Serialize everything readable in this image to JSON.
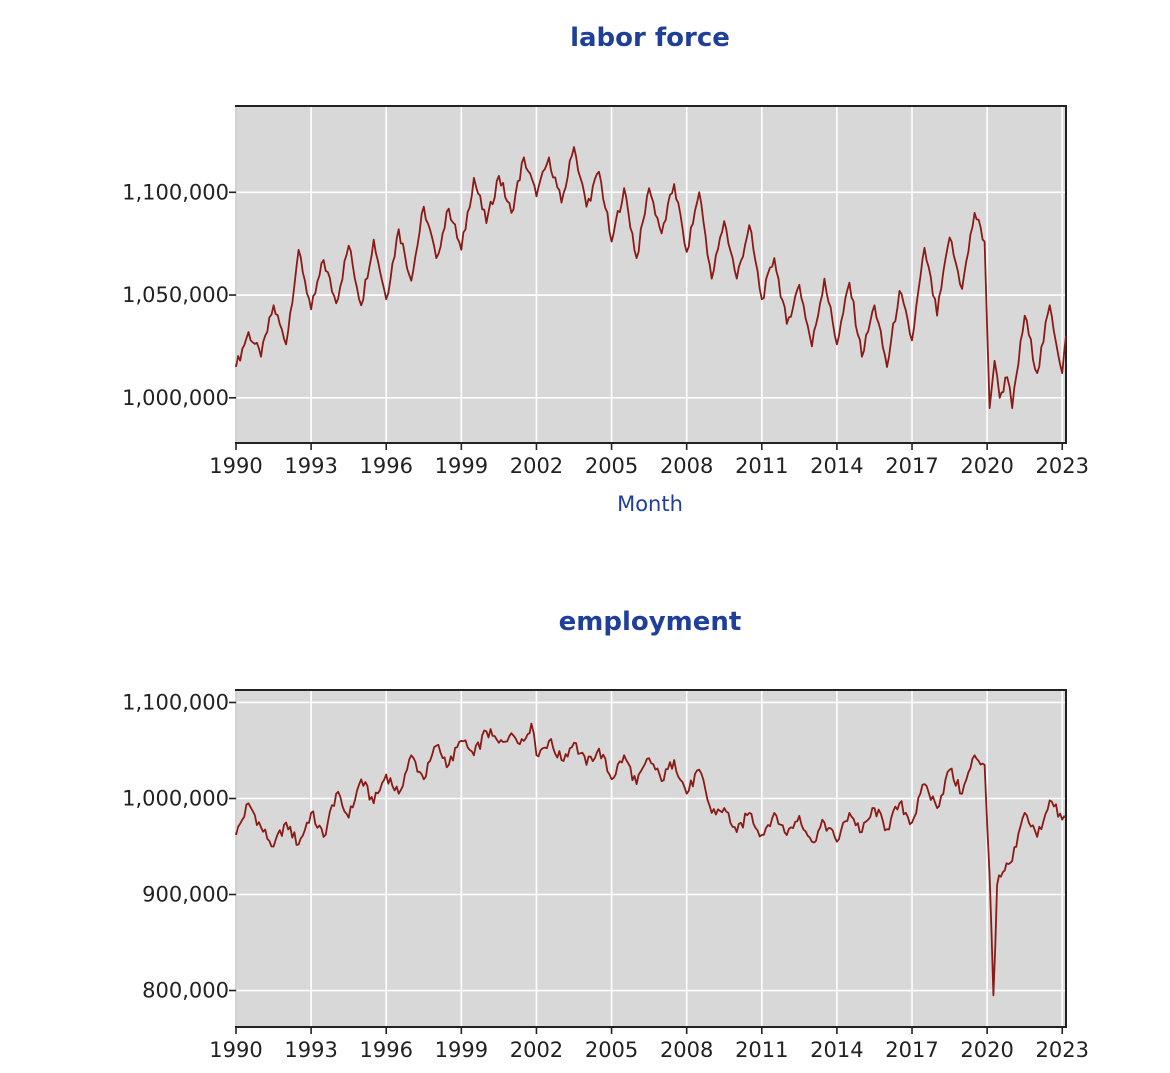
{
  "chart_data": [
    {
      "type": "line",
      "title": "labor force",
      "xlabel": "Month",
      "ylabel": "",
      "x_range": [
        1990,
        2023.15
      ],
      "ylim": [
        978000,
        1142000
      ],
      "x_ticks": [
        "1990",
        "1993",
        "1996",
        "1999",
        "2002",
        "2005",
        "2008",
        "2011",
        "2014",
        "2017",
        "2020",
        "2023"
      ],
      "y_ticks": [
        "1,000,000",
        "1,050,000",
        "1,100,000"
      ],
      "grid": true,
      "line_color": "#8b1a14",
      "background": "#d8d8d8",
      "series": [
        {
          "values": [
            [
              1990.0,
              1015000
            ],
            [
              1990.5,
              1032000
            ],
            [
              1991.0,
              1020000
            ],
            [
              1991.5,
              1045000
            ],
            [
              1992.0,
              1026000
            ],
            [
              1992.5,
              1072000
            ],
            [
              1993.0,
              1043000
            ],
            [
              1993.5,
              1067000
            ],
            [
              1994.0,
              1046000
            ],
            [
              1994.5,
              1074000
            ],
            [
              1995.0,
              1045000
            ],
            [
              1995.5,
              1077000
            ],
            [
              1996.0,
              1048000
            ],
            [
              1996.5,
              1082000
            ],
            [
              1997.0,
              1057000
            ],
            [
              1997.5,
              1093000
            ],
            [
              1998.0,
              1068000
            ],
            [
              1998.5,
              1092000
            ],
            [
              1999.0,
              1072000
            ],
            [
              1999.5,
              1107000
            ],
            [
              2000.0,
              1085000
            ],
            [
              2000.5,
              1108000
            ],
            [
              2001.0,
              1090000
            ],
            [
              2001.5,
              1117000
            ],
            [
              2002.0,
              1098000
            ],
            [
              2002.5,
              1117000
            ],
            [
              2003.0,
              1095000
            ],
            [
              2003.5,
              1122000
            ],
            [
              2004.0,
              1093000
            ],
            [
              2004.5,
              1110000
            ],
            [
              2005.0,
              1076000
            ],
            [
              2005.5,
              1102000
            ],
            [
              2006.0,
              1068000
            ],
            [
              2006.5,
              1102000
            ],
            [
              2007.0,
              1080000
            ],
            [
              2007.5,
              1104000
            ],
            [
              2008.0,
              1071000
            ],
            [
              2008.5,
              1100000
            ],
            [
              2009.0,
              1058000
            ],
            [
              2009.5,
              1086000
            ],
            [
              2010.0,
              1058000
            ],
            [
              2010.5,
              1084000
            ],
            [
              2011.0,
              1048000
            ],
            [
              2011.5,
              1068000
            ],
            [
              2012.0,
              1036000
            ],
            [
              2012.5,
              1055000
            ],
            [
              2013.0,
              1025000
            ],
            [
              2013.5,
              1058000
            ],
            [
              2014.0,
              1026000
            ],
            [
              2014.5,
              1056000
            ],
            [
              2015.0,
              1020000
            ],
            [
              2015.5,
              1045000
            ],
            [
              2016.0,
              1015000
            ],
            [
              2016.5,
              1052000
            ],
            [
              2017.0,
              1028000
            ],
            [
              2017.5,
              1073000
            ],
            [
              2018.0,
              1040000
            ],
            [
              2018.5,
              1078000
            ],
            [
              2019.0,
              1053000
            ],
            [
              2019.5,
              1090000
            ],
            [
              2019.9,
              1076000
            ],
            [
              2020.1,
              995000
            ],
            [
              2020.3,
              1018000
            ],
            [
              2020.5,
              1000000
            ],
            [
              2020.8,
              1010000
            ],
            [
              2021.0,
              995000
            ],
            [
              2021.5,
              1040000
            ],
            [
              2022.0,
              1012000
            ],
            [
              2022.5,
              1045000
            ],
            [
              2023.0,
              1012000
            ],
            [
              2023.15,
              1030000
            ]
          ]
        }
      ]
    },
    {
      "type": "line",
      "title": "employment",
      "xlabel": "",
      "ylabel": "",
      "x_range": [
        1990,
        2023.15
      ],
      "ylim": [
        762000,
        1113000
      ],
      "x_ticks": [
        "1990",
        "1993",
        "1996",
        "1999",
        "2002",
        "2005",
        "2008",
        "2011",
        "2014",
        "2017",
        "2020",
        "2023"
      ],
      "y_ticks": [
        "800,000",
        "900,000",
        "1,000,000",
        "1,100,000"
      ],
      "grid": true,
      "line_color": "#8b1a14",
      "background": "#d8d8d8",
      "series": [
        {
          "values": [
            [
              1990.0,
              962000
            ],
            [
              1990.5,
              995000
            ],
            [
              1991.0,
              970000
            ],
            [
              1991.5,
              950000
            ],
            [
              1992.0,
              975000
            ],
            [
              1992.5,
              952000
            ],
            [
              1993.0,
              985000
            ],
            [
              1993.5,
              960000
            ],
            [
              1994.0,
              1005000
            ],
            [
              1994.5,
              980000
            ],
            [
              1995.0,
              1020000
            ],
            [
              1995.5,
              995000
            ],
            [
              1996.0,
              1025000
            ],
            [
              1996.5,
              1005000
            ],
            [
              1997.0,
              1045000
            ],
            [
              1997.5,
              1020000
            ],
            [
              1998.0,
              1055000
            ],
            [
              1998.5,
              1035000
            ],
            [
              1999.0,
              1060000
            ],
            [
              1999.5,
              1045000
            ],
            [
              2000.0,
              1070000
            ],
            [
              2000.5,
              1058000
            ],
            [
              2001.0,
              1068000
            ],
            [
              2001.5,
              1060000
            ],
            [
              2001.8,
              1078000
            ],
            [
              2002.0,
              1045000
            ],
            [
              2002.5,
              1060000
            ],
            [
              2003.0,
              1040000
            ],
            [
              2003.5,
              1058000
            ],
            [
              2004.0,
              1035000
            ],
            [
              2004.5,
              1052000
            ],
            [
              2005.0,
              1020000
            ],
            [
              2005.5,
              1045000
            ],
            [
              2006.0,
              1015000
            ],
            [
              2006.5,
              1042000
            ],
            [
              2007.0,
              1018000
            ],
            [
              2007.5,
              1040000
            ],
            [
              2008.0,
              1005000
            ],
            [
              2008.5,
              1030000
            ],
            [
              2009.0,
              985000
            ],
            [
              2009.5,
              990000
            ],
            [
              2010.0,
              965000
            ],
            [
              2010.5,
              985000
            ],
            [
              2011.0,
              962000
            ],
            [
              2011.5,
              985000
            ],
            [
              2012.0,
              962000
            ],
            [
              2012.5,
              982000
            ],
            [
              2013.0,
              955000
            ],
            [
              2013.5,
              975000
            ],
            [
              2014.0,
              955000
            ],
            [
              2014.5,
              985000
            ],
            [
              2015.0,
              965000
            ],
            [
              2015.5,
              990000
            ],
            [
              2016.0,
              968000
            ],
            [
              2016.5,
              995000
            ],
            [
              2017.0,
              975000
            ],
            [
              2017.5,
              1015000
            ],
            [
              2018.0,
              990000
            ],
            [
              2018.5,
              1030000
            ],
            [
              2019.0,
              1005000
            ],
            [
              2019.5,
              1045000
            ],
            [
              2019.9,
              1035000
            ],
            [
              2020.1,
              920000
            ],
            [
              2020.25,
              795000
            ],
            [
              2020.4,
              910000
            ],
            [
              2020.7,
              925000
            ],
            [
              2021.0,
              935000
            ],
            [
              2021.5,
              985000
            ],
            [
              2022.0,
              960000
            ],
            [
              2022.5,
              998000
            ],
            [
              2023.0,
              978000
            ],
            [
              2023.15,
              980000
            ]
          ]
        }
      ]
    }
  ]
}
